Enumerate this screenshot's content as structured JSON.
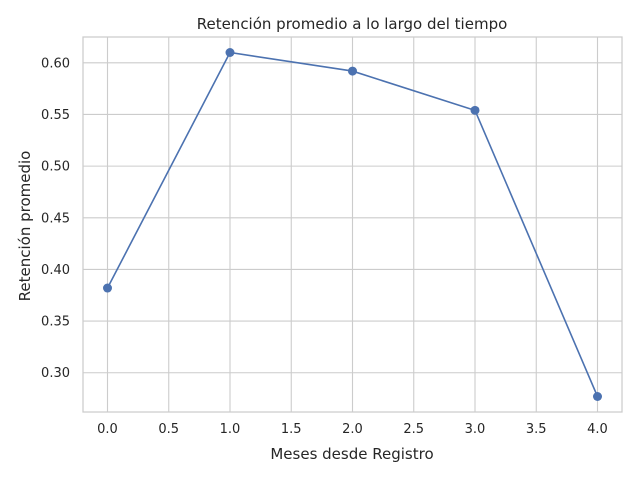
{
  "chart_data": {
    "type": "line",
    "title": "Retención promedio a lo largo del tiempo",
    "xlabel": "Meses desde Registro",
    "ylabel": "Retención promedio",
    "x": [
      0.0,
      1.0,
      2.0,
      3.0,
      4.0
    ],
    "series": [
      {
        "values": [
          0.382,
          0.61,
          0.592,
          0.554,
          0.277
        ],
        "color": "#4c72b0",
        "marker": "circle"
      }
    ],
    "xlim": [
      -0.2,
      4.2
    ],
    "ylim": [
      0.262,
      0.625
    ],
    "xticks": [
      0.0,
      0.5,
      1.0,
      1.5,
      2.0,
      2.5,
      3.0,
      3.5,
      4.0
    ],
    "xtick_labels": [
      "0.0",
      "0.5",
      "1.0",
      "1.5",
      "2.0",
      "2.5",
      "3.0",
      "3.5",
      "4.0"
    ],
    "yticks": [
      0.3,
      0.35,
      0.4,
      0.45,
      0.5,
      0.55,
      0.6
    ],
    "ytick_labels": [
      "0.30",
      "0.35",
      "0.40",
      "0.45",
      "0.50",
      "0.55",
      "0.60"
    ],
    "grid": true,
    "legend": false
  }
}
